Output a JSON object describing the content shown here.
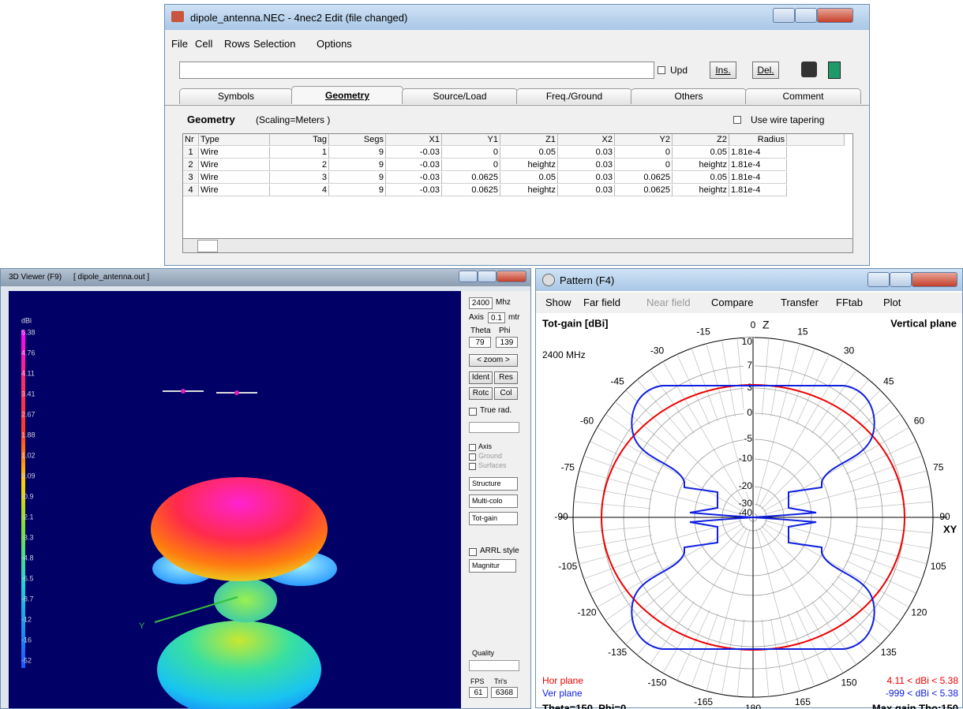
{
  "editor": {
    "title": "dipole_antenna.NEC - 4nec2 Edit (file changed)",
    "menu": [
      "File",
      "Cell",
      "Rows",
      "Selection",
      "Options"
    ],
    "upd": "Upd",
    "ins": "Ins.",
    "del": "Del.",
    "tabs": [
      "Symbols",
      "Geometry",
      "Source/Load",
      "Freq./Ground",
      "Others",
      "Comment"
    ],
    "section": "Geometry",
    "scaling": "(Scaling=Meters )",
    "tapering": "Use wire tapering",
    "table": {
      "headers": [
        "Nr",
        "Type",
        "Tag",
        "Segs",
        "X1",
        "Y1",
        "Z1",
        "X2",
        "Y2",
        "Z2",
        "Radius"
      ],
      "rows": [
        [
          "1",
          "Wire",
          "1",
          "9",
          "-0.03",
          "0",
          "0.05",
          "0.03",
          "0",
          "0.05",
          "1.81e-4"
        ],
        [
          "2",
          "Wire",
          "2",
          "9",
          "-0.03",
          "0",
          "heightz",
          "0.03",
          "0",
          "heightz",
          "1.81e-4"
        ],
        [
          "3",
          "Wire",
          "3",
          "9",
          "-0.03",
          "0.0625",
          "0.05",
          "0.03",
          "0.0625",
          "0.05",
          "1.81e-4"
        ],
        [
          "4",
          "Wire",
          "4",
          "9",
          "-0.03",
          "0.0625",
          "heightz",
          "0.03",
          "0.0625",
          "heightz",
          "1.81e-4"
        ]
      ]
    }
  },
  "viewer": {
    "title": "3D Viewer (F9)",
    "file": "[ dipole_antenna.out ]",
    "legend_unit": "dBi",
    "legend": [
      "5.38",
      "4.76",
      "4.11",
      "3.41",
      "2.67",
      "1.88",
      "1.02",
      "0.09",
      "-0.9",
      "-2.1",
      "-3.3",
      "-4.8",
      "-6.5",
      "-8.7",
      "-12",
      "-16",
      "-52"
    ],
    "axis_letter": "Y",
    "panel": {
      "freq": "2400",
      "freq_unit": "Mhz",
      "axis_label": "Axis",
      "axis_value": "0.1",
      "axis_unit": "mtr",
      "theta": "Theta",
      "phi": "Phi",
      "theta_value": "79",
      "phi_value": "139",
      "zoom": "< zoom >",
      "buttons": [
        "Ident",
        "Res",
        "Rotc",
        "Col"
      ],
      "true_rad": "True rad.",
      "checks": [
        "Axis",
        "Ground",
        "Surfaces"
      ],
      "dropdowns": [
        "Structure",
        "Multi-colo",
        "Tot-gain"
      ],
      "arrl": "ARRL style",
      "magnitude": "Magnitur",
      "quality": "Quality",
      "fps": "FPS",
      "tris": "Tri's",
      "fps_value": "61",
      "tris_value": "6368"
    }
  },
  "pattern": {
    "title": "Pattern (F4)",
    "menu": [
      "Show",
      "Far field",
      "Near field",
      "Compare",
      "Transfer",
      "FFtab",
      "Plot"
    ],
    "gain_label": "Tot-gain [dBi]",
    "plane": "Vertical plane",
    "freq": "2400 MHz",
    "z": "Z",
    "xy": "XY",
    "angles_right": [
      0,
      15,
      30,
      45,
      60,
      75,
      90,
      105,
      120,
      135,
      150,
      165,
      180
    ],
    "angles_left": [
      -15,
      -30,
      -45,
      -60,
      -75,
      -90,
      -105,
      -120,
      -135,
      -150,
      -165
    ],
    "rings": [
      "10",
      "7",
      "3",
      "0",
      "-5",
      "-10",
      "-20",
      "-30",
      "-40"
    ],
    "hor": "Hor plane",
    "ver": "Ver plane",
    "hor_range": "4.11 < dBi < 5.38",
    "ver_range": "-999 < dBi < 5.38",
    "footer_left": "Theta=150, Phi=0",
    "footer_right": "Max gain Tho:150"
  }
}
